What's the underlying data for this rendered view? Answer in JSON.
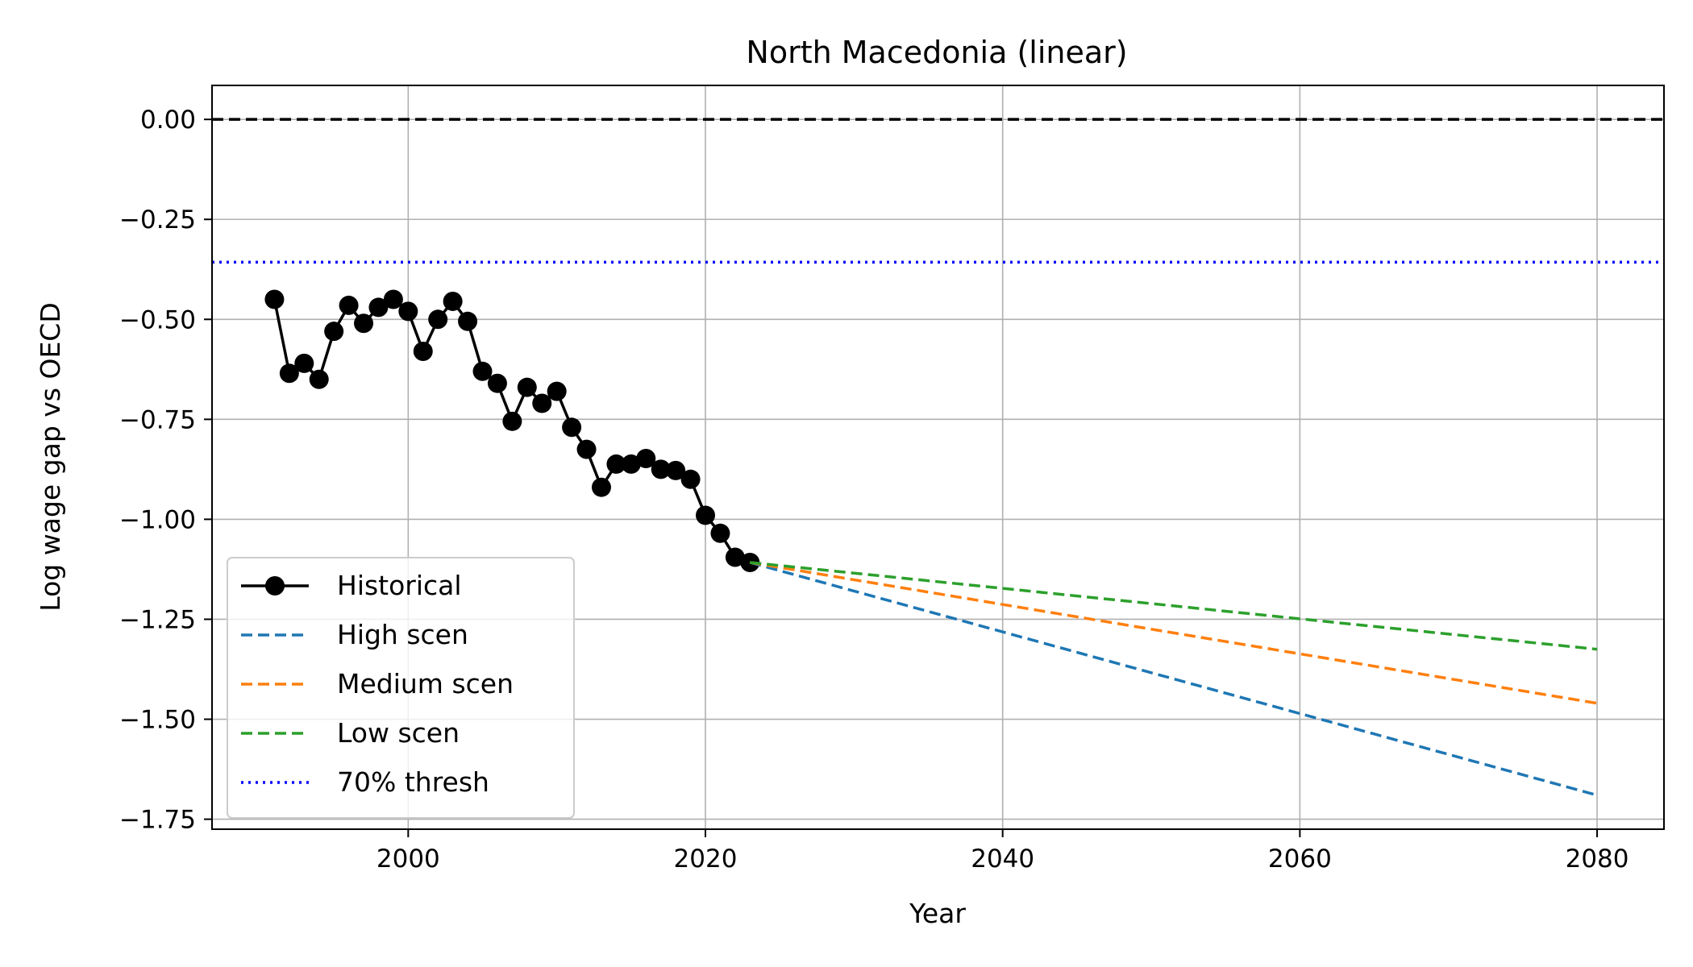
{
  "chart_data": {
    "type": "line",
    "title": "North Macedonia (linear)",
    "xlabel": "Year",
    "ylabel": "Log wage gap vs OECD",
    "xlim": [
      1986.8,
      2084.5
    ],
    "ylim": [
      -1.775,
      0.085
    ],
    "x_ticks": [
      2000,
      2020,
      2040,
      2060,
      2080
    ],
    "x_tick_labels": [
      "2000",
      "2020",
      "2040",
      "2060",
      "2080"
    ],
    "y_ticks": [
      0.0,
      -0.25,
      -0.5,
      -0.75,
      -1.0,
      -1.25,
      -1.5,
      -1.75
    ],
    "y_tick_labels": [
      "0.00",
      "−0.25",
      "−0.50",
      "−0.75",
      "−1.00",
      "−1.25",
      "−1.50",
      "−1.75"
    ],
    "grid": true,
    "legend_position": "lower-left",
    "series": [
      {
        "name": "Historical",
        "style": "solid-marker",
        "color": "#000000",
        "x": [
          1991,
          1992,
          1993,
          1994,
          1995,
          1996,
          1997,
          1998,
          1999,
          2000,
          2001,
          2002,
          2003,
          2004,
          2005,
          2006,
          2007,
          2008,
          2009,
          2010,
          2011,
          2012,
          2013,
          2014,
          2015,
          2016,
          2017,
          2018,
          2019,
          2020,
          2021,
          2022,
          2023
        ],
        "y": [
          -0.45,
          -0.635,
          -0.61,
          -0.65,
          -0.53,
          -0.465,
          -0.51,
          -0.47,
          -0.45,
          -0.48,
          -0.58,
          -0.5,
          -0.455,
          -0.505,
          -0.63,
          -0.66,
          -0.755,
          -0.67,
          -0.71,
          -0.68,
          -0.77,
          -0.825,
          -0.92,
          -0.862,
          -0.862,
          -0.848,
          -0.875,
          -0.878,
          -0.9,
          -0.99,
          -1.035,
          -1.095,
          -1.108
        ]
      },
      {
        "name": "High scen",
        "style": "dashed",
        "color": "#1f77b4",
        "x": [
          2023,
          2080
        ],
        "y": [
          -1.108,
          -1.69
        ]
      },
      {
        "name": "Medium scen",
        "style": "dashed",
        "color": "#ff7f0e",
        "x": [
          2023,
          2080
        ],
        "y": [
          -1.108,
          -1.46
        ]
      },
      {
        "name": "Low scen",
        "style": "dashed",
        "color": "#2ca02c",
        "x": [
          2023,
          2080
        ],
        "y": [
          -1.108,
          -1.325
        ]
      }
    ],
    "reference_lines": [
      {
        "name": "",
        "y": 0.0,
        "style": "dashed",
        "color": "#000000"
      },
      {
        "name": "70% thresh",
        "y": -0.357,
        "style": "dotted",
        "color": "#0000ff"
      }
    ]
  }
}
